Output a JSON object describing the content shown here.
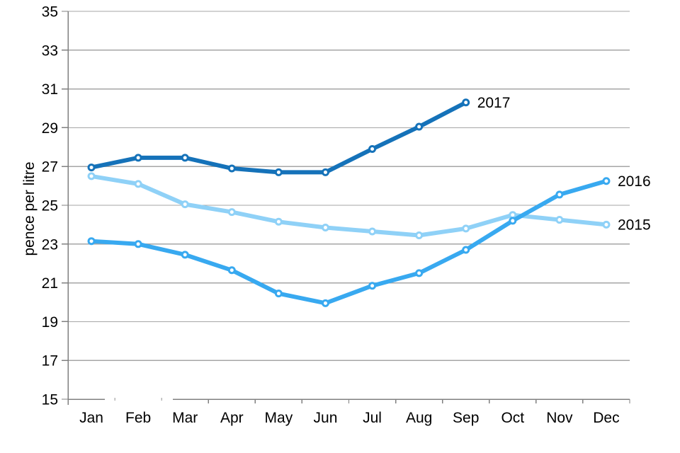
{
  "chart_data": {
    "type": "line",
    "title": "",
    "ylabel": "pence per litre",
    "xlabel": "",
    "categories": [
      "Jan",
      "Feb",
      "Mar",
      "Apr",
      "May",
      "Jun",
      "Jul",
      "Aug",
      "Sep",
      "Oct",
      "Nov",
      "Dec"
    ],
    "ylim": [
      15,
      35
    ],
    "ytick_step": 2,
    "grid": true,
    "legend_position": "line-end-labels",
    "series": [
      {
        "name": "2015",
        "color": "#8FD1F7",
        "values": [
          26.5,
          26.1,
          25.05,
          24.65,
          24.15,
          23.85,
          23.65,
          23.45,
          23.8,
          24.5,
          24.25,
          24.0
        ]
      },
      {
        "name": "2016",
        "color": "#38A9F0",
        "values": [
          23.15,
          23.0,
          22.45,
          21.65,
          20.45,
          19.95,
          20.85,
          21.5,
          22.7,
          24.2,
          25.55,
          26.25
        ]
      },
      {
        "name": "2017",
        "color": "#1572B9",
        "values": [
          26.95,
          27.45,
          27.45,
          26.9,
          26.7,
          26.7,
          27.9,
          29.05,
          30.3
        ]
      }
    ]
  },
  "styles": {
    "grid_color": "#A6A6A6",
    "axis_color": "#808080",
    "faint_tick_color": "#B5B5B5",
    "text_color": "#000000",
    "marker_fill": "#FFFFFF",
    "background": "#FFFFFF"
  }
}
